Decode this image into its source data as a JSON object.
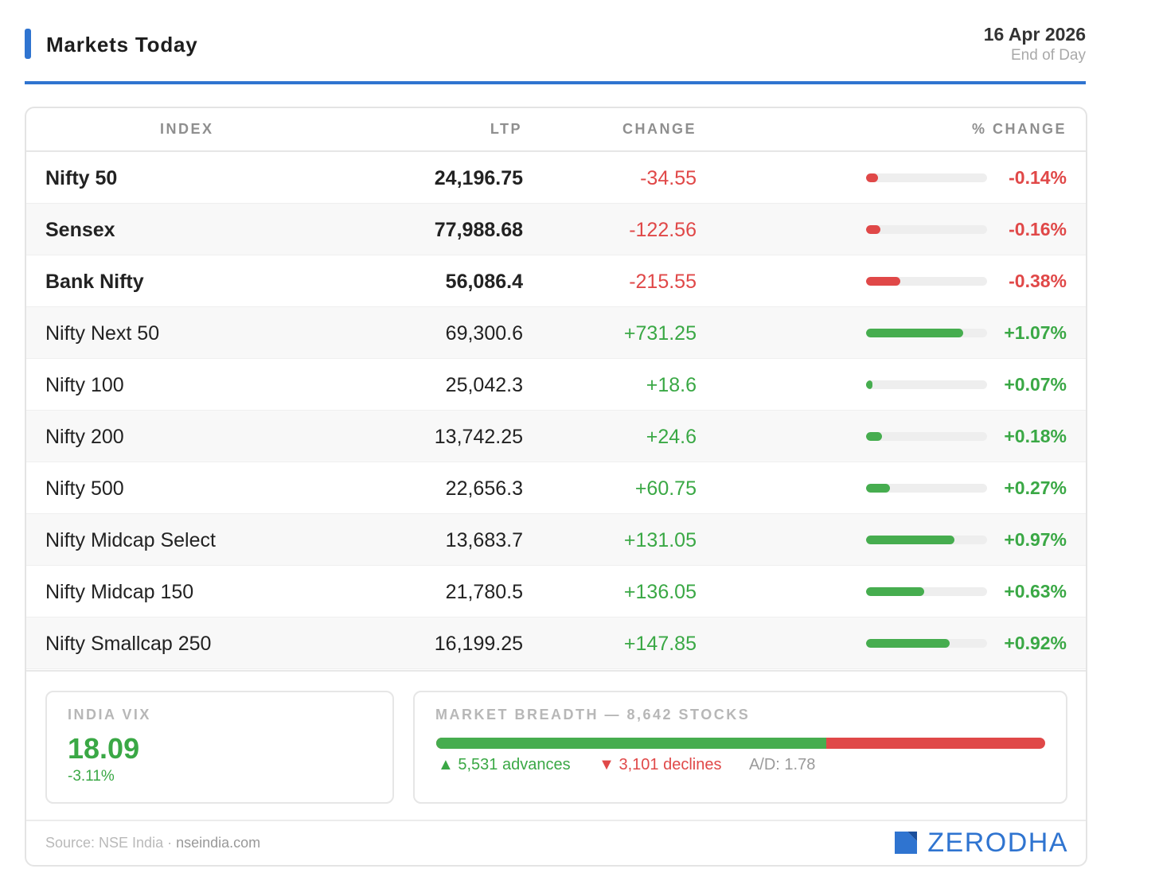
{
  "header": {
    "title": "Markets Today",
    "date": "16 Apr 2026",
    "session": "End of Day"
  },
  "colors": {
    "accent": "#2f74d0",
    "positive": "#3aa845",
    "negative": "#e04848"
  },
  "table": {
    "columns": [
      "INDEX",
      "LTP",
      "CHANGE",
      "% CHANGE"
    ],
    "rows": [
      {
        "name": "Nifty 50",
        "ltp": "24,196.75",
        "change": "-34.55",
        "pct": "-0.14%",
        "dir": "neg",
        "bar_fraction": 0.1,
        "bold": true
      },
      {
        "name": "Sensex",
        "ltp": "77,988.68",
        "change": "-122.56",
        "pct": "-0.16%",
        "dir": "neg",
        "bar_fraction": 0.12,
        "bold": true
      },
      {
        "name": "Bank Nifty",
        "ltp": "56,086.4",
        "change": "-215.55",
        "pct": "-0.38%",
        "dir": "neg",
        "bar_fraction": 0.28,
        "bold": true
      },
      {
        "name": "Nifty Next 50",
        "ltp": "69,300.6",
        "change": "+731.25",
        "pct": "+1.07%",
        "dir": "pos",
        "bar_fraction": 0.8,
        "bold": false
      },
      {
        "name": "Nifty 100",
        "ltp": "25,042.3",
        "change": "+18.6",
        "pct": "+0.07%",
        "dir": "pos",
        "bar_fraction": 0.05,
        "bold": false
      },
      {
        "name": "Nifty 200",
        "ltp": "13,742.25",
        "change": "+24.6",
        "pct": "+0.18%",
        "dir": "pos",
        "bar_fraction": 0.13,
        "bold": false
      },
      {
        "name": "Nifty 500",
        "ltp": "22,656.3",
        "change": "+60.75",
        "pct": "+0.27%",
        "dir": "pos",
        "bar_fraction": 0.2,
        "bold": false
      },
      {
        "name": "Nifty Midcap Select",
        "ltp": "13,683.7",
        "change": "+131.05",
        "pct": "+0.97%",
        "dir": "pos",
        "bar_fraction": 0.73,
        "bold": false
      },
      {
        "name": "Nifty Midcap 150",
        "ltp": "21,780.5",
        "change": "+136.05",
        "pct": "+0.63%",
        "dir": "pos",
        "bar_fraction": 0.48,
        "bold": false
      },
      {
        "name": "Nifty Smallcap 250",
        "ltp": "16,199.25",
        "change": "+147.85",
        "pct": "+0.92%",
        "dir": "pos",
        "bar_fraction": 0.69,
        "bold": false
      }
    ]
  },
  "vix": {
    "label": "INDIA VIX",
    "value": "18.09",
    "change": "-3.11%"
  },
  "breadth": {
    "label": "MARKET BREADTH — 8,642 STOCKS",
    "advance_fraction": 0.64,
    "advances": "▲ 5,531 advances",
    "declines": "▼ 3,101 declines",
    "ad_ratio": "A/D: 1.78"
  },
  "footer": {
    "source": "Source: NSE India · ",
    "site": "nseindia.com",
    "brand": "ZERODHA",
    "brand_icon": "zerodha-logo-icon"
  }
}
